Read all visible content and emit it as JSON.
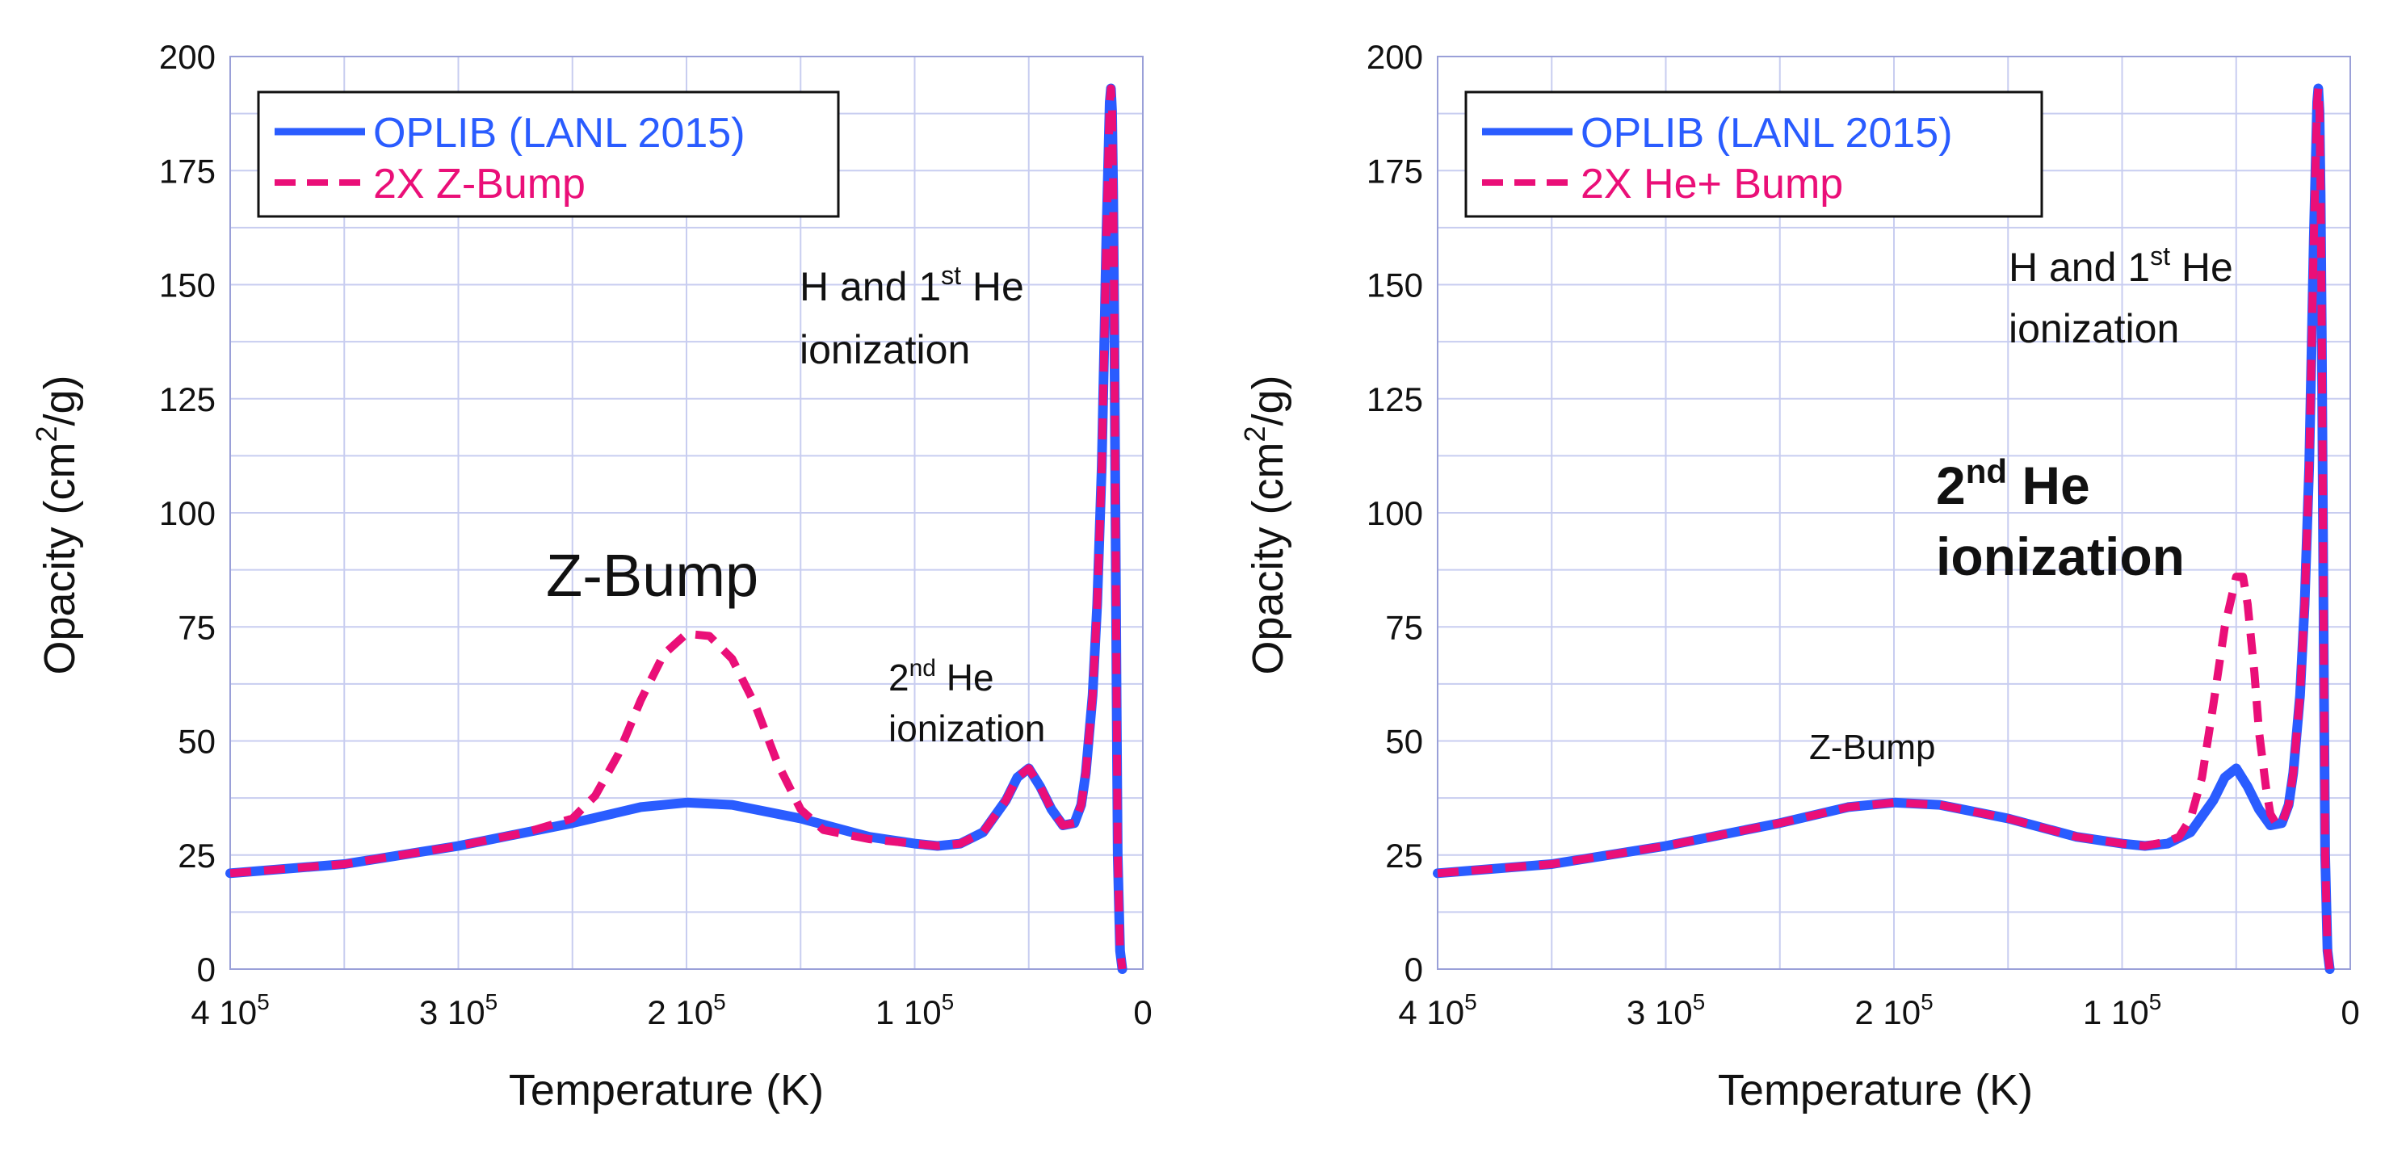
{
  "colors": {
    "oplib": "#2a5cff",
    "modified": "#ea0f78",
    "grid": "#c8cdf0",
    "axis": "#9aa0d8"
  },
  "chart_data": [
    {
      "type": "line",
      "xlabel": "Temperature (K)",
      "ylabel": "Opacity (cm",
      "ylabel_sup": "2",
      "ylabel_tail": "/g)",
      "xlim": [
        400000,
        0
      ],
      "ylim": [
        0,
        200
      ],
      "grid": true,
      "legend_position": "top-left",
      "xticks": [
        {
          "value": 400000,
          "base": "4 10",
          "exp": "5"
        },
        {
          "value": 300000,
          "base": "3 10",
          "exp": "5"
        },
        {
          "value": 200000,
          "base": "2 10",
          "exp": "5"
        },
        {
          "value": 100000,
          "base": "1 10",
          "exp": "5"
        },
        {
          "value": 0,
          "base": "0",
          "exp": ""
        }
      ],
      "yticks": [
        "0",
        "25",
        "50",
        "75",
        "100",
        "125",
        "150",
        "175",
        "200"
      ],
      "series": [
        {
          "name": "OPLIB (LANL 2015)",
          "style": "solid",
          "color_key": "oplib",
          "x": [
            400000,
            350000,
            300000,
            250000,
            220000,
            200000,
            180000,
            150000,
            120000,
            100000,
            90000,
            80000,
            70000,
            60000,
            55000,
            50000,
            45000,
            40000,
            35000,
            30000,
            27000,
            25000,
            22000,
            20000,
            18000,
            17000,
            16000,
            15000,
            14500,
            14000,
            13500,
            13000,
            12500,
            12000,
            11500,
            11000,
            10000,
            9000
          ],
          "y": [
            21,
            23,
            27,
            32,
            35.5,
            36.5,
            36,
            33,
            29,
            27.5,
            27,
            27.5,
            30,
            37,
            42,
            44,
            40,
            35,
            31.5,
            32,
            36,
            43,
            60,
            80,
            110,
            135,
            160,
            180,
            190,
            193,
            188,
            170,
            140,
            100,
            60,
            25,
            4,
            0
          ]
        },
        {
          "name": "2X Z-Bump",
          "style": "dashed",
          "color_key": "modified",
          "x": [
            400000,
            350000,
            300000,
            270000,
            250000,
            240000,
            230000,
            220000,
            210000,
            200000,
            190000,
            180000,
            170000,
            160000,
            150000,
            140000,
            120000,
            100000,
            90000,
            80000,
            70000,
            60000,
            55000,
            50000,
            45000,
            40000,
            35000,
            30000,
            27000,
            25000,
            22000,
            20000,
            18000,
            17000,
            16000,
            15000,
            14500,
            14000,
            13500,
            13000,
            12500,
            12000,
            11500,
            11000,
            10000,
            9000
          ],
          "y": [
            21,
            23,
            27,
            30,
            33,
            38,
            47,
            59,
            69,
            73.5,
            73,
            68,
            58,
            45,
            35,
            30.5,
            28.5,
            27.5,
            27,
            27.5,
            30,
            37,
            42,
            44,
            40,
            35,
            31.5,
            32,
            36,
            43,
            60,
            80,
            110,
            135,
            160,
            180,
            190,
            193,
            188,
            170,
            140,
            100,
            60,
            25,
            4,
            0
          ]
        }
      ],
      "annotations": [
        {
          "id": "hhe1",
          "text1": "H and 1",
          "sup": "st",
          "text2": " He",
          "line2": "ionization"
        },
        {
          "id": "zbump",
          "text": "Z-Bump"
        },
        {
          "id": "he2",
          "text1": "2",
          "sup": "nd",
          "text2": " He",
          "line2": "ionization"
        }
      ]
    },
    {
      "type": "line",
      "xlabel": "Temperature (K)",
      "ylabel": "Opacity (cm",
      "ylabel_sup": "2",
      "ylabel_tail": "/g)",
      "xlim": [
        400000,
        0
      ],
      "ylim": [
        0,
        200
      ],
      "grid": true,
      "legend_position": "top-left",
      "xticks": [
        {
          "value": 400000,
          "base": "4 10",
          "exp": "5"
        },
        {
          "value": 300000,
          "base": "3 10",
          "exp": "5"
        },
        {
          "value": 200000,
          "base": "2 10",
          "exp": "5"
        },
        {
          "value": 100000,
          "base": "1 10",
          "exp": "5"
        },
        {
          "value": 0,
          "base": "0",
          "exp": ""
        }
      ],
      "yticks": [
        "0",
        "25",
        "50",
        "75",
        "100",
        "125",
        "150",
        "175",
        "200"
      ],
      "series": [
        {
          "name": "OPLIB (LANL 2015)",
          "style": "solid",
          "color_key": "oplib",
          "x": [
            400000,
            350000,
            300000,
            250000,
            220000,
            200000,
            180000,
            150000,
            120000,
            100000,
            90000,
            80000,
            70000,
            60000,
            55000,
            50000,
            45000,
            40000,
            35000,
            30000,
            27000,
            25000,
            22000,
            20000,
            18000,
            17000,
            16000,
            15000,
            14500,
            14000,
            13500,
            13000,
            12500,
            12000,
            11500,
            11000,
            10000,
            9000
          ],
          "y": [
            21,
            23,
            27,
            32,
            35.5,
            36.5,
            36,
            33,
            29,
            27.5,
            27,
            27.5,
            30,
            37,
            42,
            44,
            40,
            35,
            31.5,
            32,
            36,
            43,
            60,
            80,
            110,
            135,
            160,
            180,
            190,
            193,
            188,
            170,
            140,
            100,
            60,
            25,
            4,
            0
          ]
        },
        {
          "name": "2X He+ Bump",
          "style": "dashed",
          "color_key": "modified",
          "x": [
            400000,
            350000,
            300000,
            250000,
            220000,
            200000,
            180000,
            150000,
            120000,
            100000,
            90000,
            80000,
            75000,
            70000,
            65000,
            60000,
            55000,
            50000,
            47000,
            45000,
            42000,
            40000,
            37000,
            35000,
            32000,
            30000,
            27000,
            25000,
            22000,
            20000,
            18000,
            17000,
            16000,
            15000,
            14500,
            14000,
            13500,
            13000,
            12500,
            12000,
            11500,
            11000,
            10000,
            9000
          ],
          "y": [
            21,
            23,
            27,
            32,
            35.5,
            36.5,
            36,
            33,
            29,
            27.5,
            27,
            28,
            29,
            33,
            42,
            58,
            75,
            86,
            86,
            80,
            65,
            52,
            40,
            34,
            31.5,
            32,
            36,
            43,
            60,
            80,
            110,
            135,
            160,
            180,
            190,
            193,
            188,
            170,
            140,
            100,
            60,
            25,
            4,
            0
          ]
        }
      ],
      "annotations": [
        {
          "id": "hhe1",
          "text1": "H and 1",
          "sup": "st",
          "text2": " He",
          "line2": "ionization"
        },
        {
          "id": "he2",
          "text1": "2",
          "sup": "nd",
          "text2": " He",
          "line2": "ionization"
        },
        {
          "id": "zbump",
          "text": "Z-Bump"
        }
      ]
    }
  ]
}
